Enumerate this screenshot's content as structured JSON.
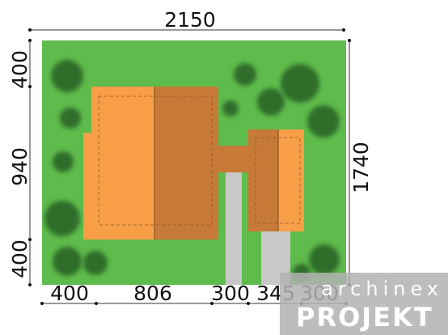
{
  "colors": {
    "lawn": "#5fbb4b",
    "house_light": "#f79e47",
    "house_dark": "#c77a37",
    "path": "#c8c8c8",
    "tree": "#2f6d2a"
  },
  "dimensions": {
    "top_width": "2150",
    "right_height": "1740",
    "left_top": "400",
    "left_middle": "940",
    "left_bottom": "400",
    "bottom_1": "400",
    "bottom_2": "806",
    "bottom_3": "300",
    "bottom_4": "345",
    "bottom_5": "300"
  },
  "watermark": {
    "top_text": "archinex",
    "bottom_text": "PROJEKT"
  }
}
